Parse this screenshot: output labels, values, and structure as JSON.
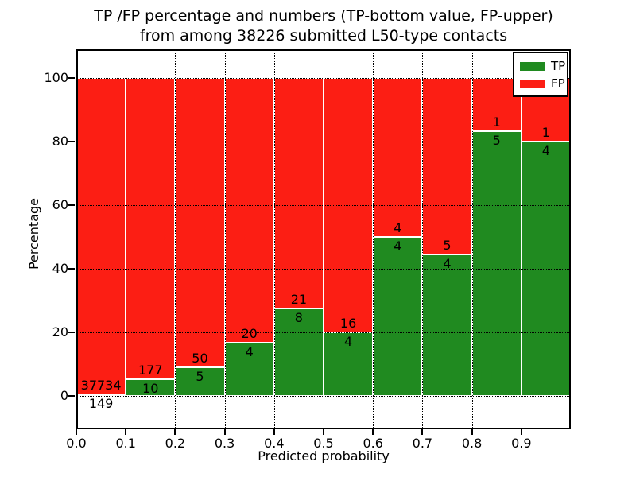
{
  "chart_data": {
    "type": "bar",
    "stacked": true,
    "title_line1": "TP /FP percentage and numbers (TP-bottom value, FP-upper)",
    "title_line2": "from among 38226 submitted L50-type contacts",
    "xlabel": "Predicted probability",
    "ylabel": "Percentage",
    "total_submitted_contacts": 38226,
    "bin_width": 0.1,
    "bins": [
      {
        "x0": 0.0,
        "x1": 0.1,
        "tp": 149,
        "fp": 37734,
        "tp_percent": 0.39
      },
      {
        "x0": 0.1,
        "x1": 0.2,
        "tp": 10,
        "fp": 177,
        "tp_percent": 5.35
      },
      {
        "x0": 0.2,
        "x1": 0.3,
        "tp": 5,
        "fp": 50,
        "tp_percent": 9.09
      },
      {
        "x0": 0.3,
        "x1": 0.4,
        "tp": 4,
        "fp": 20,
        "tp_percent": 16.67
      },
      {
        "x0": 0.4,
        "x1": 0.5,
        "tp": 8,
        "fp": 21,
        "tp_percent": 27.59
      },
      {
        "x0": 0.5,
        "x1": 0.6,
        "tp": 4,
        "fp": 16,
        "tp_percent": 20.0
      },
      {
        "x0": 0.6,
        "x1": 0.7,
        "tp": 4,
        "fp": 4,
        "tp_percent": 50.0
      },
      {
        "x0": 0.7,
        "x1": 0.8,
        "tp": 4,
        "fp": 5,
        "tp_percent": 44.44
      },
      {
        "x0": 0.8,
        "x1": 0.9,
        "tp": 5,
        "fp": 1,
        "tp_percent": 83.33
      },
      {
        "x0": 0.9,
        "x1": 1.0,
        "tp": 4,
        "fp": 1,
        "tp_percent": 80.0
      }
    ],
    "series": [
      {
        "name": "TP",
        "color": "#208a20",
        "counts": [
          149,
          10,
          5,
          4,
          8,
          4,
          4,
          4,
          5,
          4
        ]
      },
      {
        "name": "FP",
        "color": "#fc1e14",
        "counts": [
          37734,
          177,
          50,
          20,
          21,
          16,
          4,
          5,
          1,
          1
        ]
      }
    ],
    "xticks": [
      "0.0",
      "0.1",
      "0.2",
      "0.3",
      "0.4",
      "0.5",
      "0.6",
      "0.7",
      "0.8",
      "0.9"
    ],
    "yticks": [
      0,
      20,
      40,
      60,
      80,
      100
    ],
    "xlim": [
      0.0,
      1.0
    ],
    "ylim": [
      -10.5,
      109.0
    ],
    "grid": "dotted, drawn over bars",
    "bar_edge_color": "#ffffff",
    "legend": {
      "position": "upper right",
      "entries": [
        {
          "label": "TP",
          "color": "#208a20"
        },
        {
          "label": "FP",
          "color": "#fc1e14"
        }
      ]
    }
  }
}
